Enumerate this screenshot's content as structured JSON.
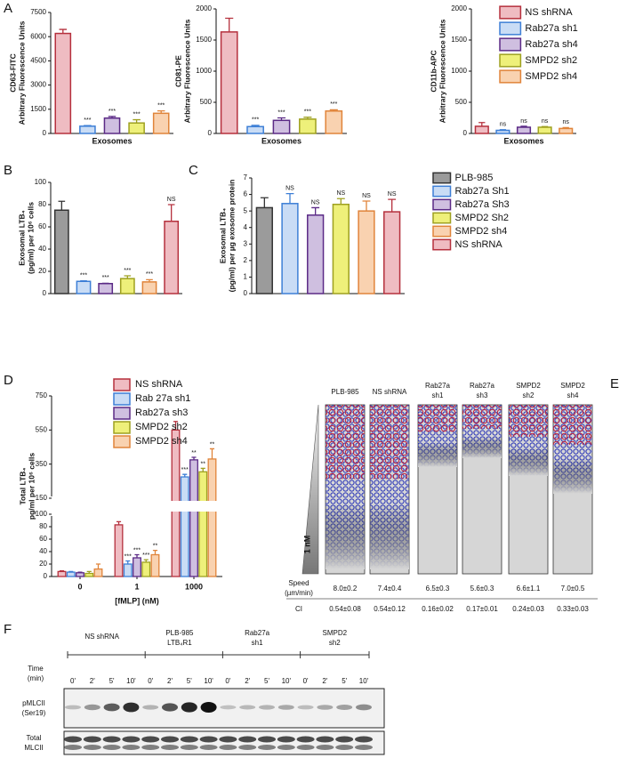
{
  "panel_letters": [
    "A",
    "B",
    "C",
    "D",
    "E",
    "F"
  ],
  "chart_data": [
    {
      "type": "bar",
      "ylabel": [
        "CD63-FITC",
        "Arbitrary Fluorescence Units"
      ],
      "xlabel": "Exosomes",
      "categories": [
        null,
        null,
        null,
        null,
        null
      ],
      "values": [
        6200,
        450,
        950,
        650,
        1250
      ],
      "errors": [
        250,
        40,
        100,
        200,
        150
      ],
      "annotations": [
        null,
        "***",
        "***",
        "***",
        "***"
      ],
      "colors": [
        "#efbcc2",
        "#c9dcf5",
        "#cfbfe0",
        "#eef07a",
        "#f9d2b0"
      ],
      "edge_colors": [
        "#b5303d",
        "#3d7fd6",
        "#5b2a86",
        "#9ea020",
        "#e0843a"
      ],
      "ylim": [
        0,
        7500
      ],
      "yticks": [
        0,
        1500,
        3000,
        4500,
        6000,
        7500
      ]
    },
    {
      "type": "bar",
      "ylabel": [
        "CD81-PE",
        "Arbitrary Fluorescence Units"
      ],
      "xlabel": "Exosomes",
      "categories": [
        null,
        null,
        null,
        null,
        null
      ],
      "values": [
        1630,
        110,
        210,
        230,
        360
      ],
      "errors": [
        220,
        20,
        40,
        30,
        20
      ],
      "annotations": [
        null,
        "***",
        "***",
        "***",
        "***"
      ],
      "colors": [
        "#efbcc2",
        "#c9dcf5",
        "#cfbfe0",
        "#eef07a",
        "#f9d2b0"
      ],
      "edge_colors": [
        "#b5303d",
        "#3d7fd6",
        "#5b2a86",
        "#9ea020",
        "#e0843a"
      ],
      "ylim": [
        0,
        2000
      ],
      "yticks": [
        0,
        500,
        1000,
        1500,
        2000
      ]
    },
    {
      "type": "bar",
      "ylabel": [
        "CD11b-APC",
        "Arbitrary Fluorescence Units"
      ],
      "xlabel": "Exosomes",
      "categories": [
        null,
        null,
        null,
        null,
        null
      ],
      "values": [
        115,
        50,
        100,
        100,
        80
      ],
      "errors": [
        60,
        10,
        15,
        10,
        15
      ],
      "annotations": [
        null,
        "ns",
        "ns",
        "ns",
        "ns"
      ],
      "colors": [
        "#efbcc2",
        "#c9dcf5",
        "#cfbfe0",
        "#eef07a",
        "#f9d2b0"
      ],
      "edge_colors": [
        "#b5303d",
        "#3d7fd6",
        "#5b2a86",
        "#9ea020",
        "#e0843a"
      ],
      "ylim": [
        0,
        2000
      ],
      "yticks": [
        0,
        500,
        1000,
        1500,
        2000
      ],
      "legend": [
        "NS shRNA",
        "Rab27a sh1",
        "Rab27a sh4",
        "SMPD2 sh2",
        "SMPD2 sh4"
      ]
    },
    {
      "type": "bar",
      "ylabel": [
        "Exosomal LTB₄",
        "(pg/ml) per 10⁶ cells"
      ],
      "categories": [
        null,
        null,
        null,
        null,
        null,
        null
      ],
      "values": [
        75,
        11,
        9,
        13.5,
        10.5,
        65
      ],
      "errors": [
        8,
        0.5,
        0.3,
        2.5,
        2,
        15
      ],
      "annotations": [
        null,
        "***",
        "***",
        "***",
        "***",
        "NS"
      ],
      "colors": [
        "#9b9b9b",
        "#c9dcf5",
        "#cfbfe0",
        "#eef07a",
        "#f9d2b0",
        "#efbcc2"
      ],
      "edge_colors": [
        "#333333",
        "#3d7fd6",
        "#5b2a86",
        "#9ea020",
        "#e0843a",
        "#b5303d"
      ],
      "ylim": [
        0,
        100
      ],
      "yticks": [
        0,
        20,
        40,
        60,
        80,
        100
      ]
    },
    {
      "type": "bar",
      "ylabel": [
        "Exosomal LTB₄",
        "(pg/ml) per µg exosome protein"
      ],
      "categories": [
        null,
        null,
        null,
        null,
        null,
        null
      ],
      "values": [
        5.2,
        5.45,
        4.75,
        5.4,
        5.0,
        4.95
      ],
      "errors": [
        0.6,
        0.6,
        0.45,
        0.35,
        0.6,
        0.75
      ],
      "annotations": [
        null,
        "NS",
        "NS",
        "NS",
        "NS",
        "NS"
      ],
      "colors": [
        "#9b9b9b",
        "#c9dcf5",
        "#cfbfe0",
        "#eef07a",
        "#f9d2b0",
        "#efbcc2"
      ],
      "edge_colors": [
        "#333333",
        "#3d7fd6",
        "#5b2a86",
        "#9ea020",
        "#e0843a",
        "#b5303d"
      ],
      "ylim": [
        0,
        7
      ],
      "yticks": [
        0,
        1,
        2,
        3,
        4,
        5,
        6,
        7
      ],
      "legend": [
        "PLB-985",
        "Rab27a Sh1",
        "Rab27a Sh3",
        "SMPD2 Sh2",
        "SMPD2 sh4",
        "NS shRNA"
      ]
    },
    {
      "type": "grouped_bar",
      "ylabel": [
        "Total LTB₄",
        "pg/ml per 10⁶ cells"
      ],
      "xlabel": "[fMLP] (nM)",
      "categories": [
        "0",
        "1",
        "1000"
      ],
      "ylim": [
        0,
        750
      ],
      "yticks": [
        0,
        20,
        40,
        60,
        80,
        100,
        150,
        350,
        550,
        750
      ],
      "axis_break": [
        100,
        150
      ],
      "series": [
        {
          "name": "NS shRNA",
          "color": "#efbcc2",
          "edge_color": "#b5303d",
          "values": [
            8,
            83,
            550
          ],
          "errors": [
            1,
            5,
            50
          ],
          "annotations": [
            null,
            null,
            null
          ]
        },
        {
          "name": "Rab 27a sh1",
          "color": "#c9dcf5",
          "edge_color": "#3d7fd6",
          "values": [
            7,
            20,
            275
          ],
          "errors": [
            1,
            5,
            15
          ],
          "annotations": [
            null,
            "***",
            "***"
          ]
        },
        {
          "name": "Rab27a sh3",
          "color": "#cfbfe0",
          "edge_color": "#5b2a86",
          "values": [
            6,
            30,
            375
          ],
          "errors": [
            1,
            5,
            15
          ],
          "annotations": [
            null,
            "***",
            "**"
          ]
        },
        {
          "name": "SMPD2 sh2",
          "color": "#eef07a",
          "edge_color": "#9ea020",
          "values": [
            5,
            23,
            305
          ],
          "errors": [
            3,
            4,
            20
          ],
          "annotations": [
            null,
            "***",
            "**"
          ]
        },
        {
          "name": "SMPD2 sh4",
          "color": "#f9d2b0",
          "edge_color": "#e0843a",
          "values": [
            12,
            35,
            380
          ],
          "errors": [
            8,
            7,
            60
          ],
          "annotations": [
            null,
            "**",
            "**"
          ]
        }
      ]
    }
  ],
  "panel_e": {
    "columns": [
      [
        "PLB-985"
      ],
      [
        "NS shRNA"
      ],
      [
        "Rab27a",
        "sh1"
      ],
      [
        "Rab27a",
        "sh3"
      ],
      [
        "SMPD2",
        "sh2"
      ],
      [
        "SMPD2",
        "sh4"
      ]
    ],
    "gradient_label": "1 nM",
    "speed_label": [
      "Speed",
      "(µm/min)"
    ],
    "speed": [
      "8.0±0.2",
      "7.4±0.4",
      "6.5±0.3",
      "5.6±0.3",
      "6.6±1.1",
      "7.0±0.5"
    ],
    "ci_label": "CI",
    "ci": [
      "0.54±0.08",
      "0.54±0.12",
      "0.16±0.02",
      "0.17±0.01",
      "0.24±0.03",
      "0.33±0.03"
    ]
  },
  "panel_f": {
    "groups": [
      [
        "NS shRNA"
      ],
      [
        "PLB-985",
        "LTB₄R1"
      ],
      [
        "Rab27a",
        "sh1"
      ],
      [
        "SMPD2",
        "sh2"
      ]
    ],
    "time_label": [
      "Time",
      "(min)"
    ],
    "times": [
      "0'",
      "2'",
      "5'",
      "10'",
      "0'",
      "2'",
      "5'",
      "10'",
      "0'",
      "2'",
      "5'",
      "10'",
      "0'",
      "2'",
      "5'",
      "10'"
    ],
    "blots": [
      [
        "pMLCII",
        "(Ser19)"
      ],
      [
        "Total",
        "MLCII"
      ]
    ]
  }
}
